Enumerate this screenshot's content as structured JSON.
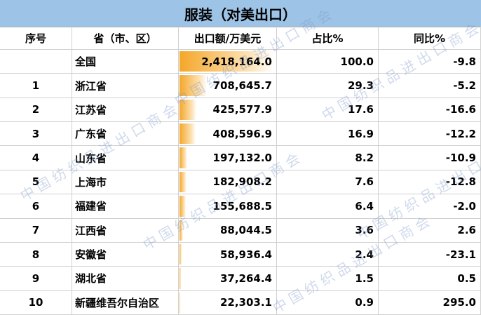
{
  "header": {
    "title": "服装（对美出口）"
  },
  "table": {
    "columns": [
      "序号",
      "省（市、区）",
      "出口额/万美元",
      "占比%",
      "同比%"
    ],
    "rows": [
      [
        null,
        "全国",
        "2,418,164.0",
        "100.0",
        "-9.8"
      ],
      [
        "1",
        "浙江省",
        "708,645.7",
        "29.3",
        "-5.2"
      ],
      [
        "2",
        "江苏省",
        "425,577.9",
        "17.6",
        "-16.6"
      ],
      [
        "3",
        "广东省",
        "408,596.9",
        "16.9",
        "-12.2"
      ],
      [
        "4",
        "山东省",
        "197,132.0",
        "8.2",
        "-10.9"
      ],
      [
        "5",
        "上海市",
        "182,908.2",
        "7.6",
        "-12.8"
      ],
      [
        "6",
        "福建省",
        "155,688.5",
        "6.4",
        "-2.0"
      ],
      [
        "7",
        "江西省",
        "88,044.5",
        "3.6",
        "2.6"
      ],
      [
        "8",
        "安徽省",
        "58,936.4",
        "2.4",
        "-23.1"
      ],
      [
        "9",
        "湖北省",
        "37,264.4",
        "1.5",
        "0.5"
      ],
      [
        "10",
        "新疆维吾尔自治区",
        "22,303.1",
        "0.9",
        "295.0"
      ]
    ]
  },
  "watermark": "中国纺织品进出口商会"
}
